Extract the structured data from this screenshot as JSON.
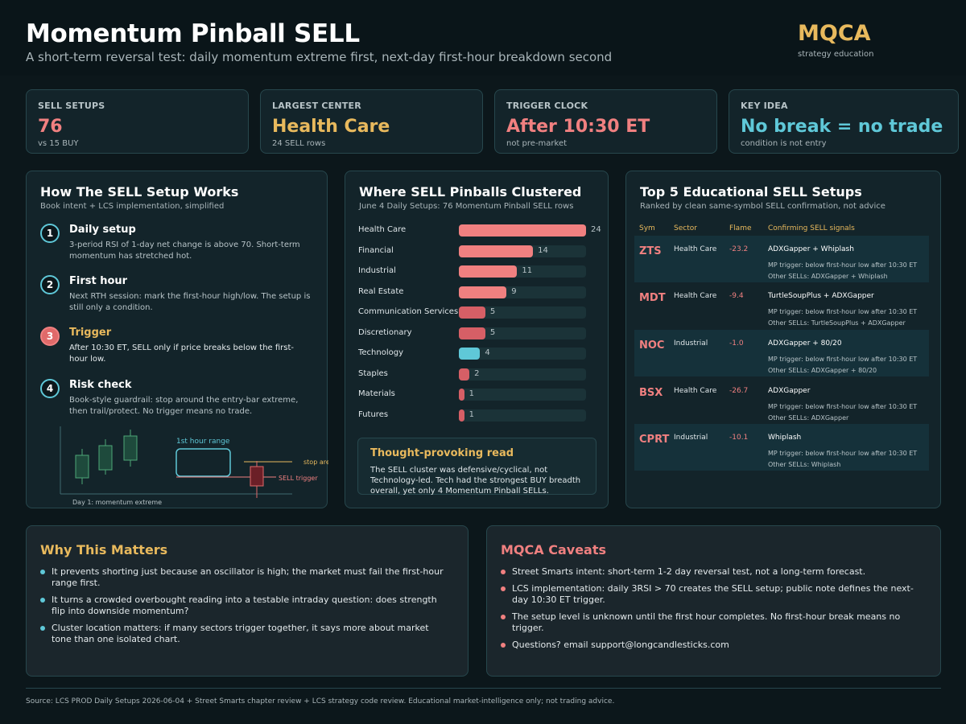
{
  "header": {
    "title": "Momentum Pinball SELL",
    "subtitle": "A short-term reversal test: daily momentum extreme first, next-day first-hour breakdown second",
    "brand": "MQCA",
    "brand_sub": "strategy education"
  },
  "kpis": [
    {
      "label": "SELL SETUPS",
      "value": "76",
      "note": "vs 15 BUY",
      "color": "#f08080"
    },
    {
      "label": "LARGEST CENTER",
      "value": "Health Care",
      "note": "24 SELL rows",
      "color": "#e8b95d"
    },
    {
      "label": "TRIGGER CLOCK",
      "value": "After 10:30 ET",
      "note": "not pre-market",
      "color": "#f08080"
    },
    {
      "label": "KEY IDEA",
      "value": "No break = no trade",
      "note": "condition is not entry",
      "color": "#5fc8d8"
    }
  ],
  "how": {
    "title": "How The SELL Setup Works",
    "subtitle": "Book intent + LCS implementation, simplified",
    "steps": [
      {
        "num": "1",
        "title": "Daily setup",
        "desc": "3-period RSI of 1-day net change is above 70. Short-term momentum has stretched hot."
      },
      {
        "num": "2",
        "title": "First hour",
        "desc": "Next RTH session: mark the first-hour high/low. The setup is still only a condition."
      },
      {
        "num": "3",
        "title": "Trigger",
        "desc": "After 10:30 ET, SELL only if price breaks below the first-hour low."
      },
      {
        "num": "4",
        "title": "Risk check",
        "desc": "Book-style guardrail: stop around the entry-bar extreme, then trail/protect. No trigger means no trade."
      }
    ],
    "diagram": {
      "range_label": "1st hour range",
      "stop_label": "stop area",
      "trigger_label": "SELL trigger",
      "caption": "Day 1: momentum extreme"
    }
  },
  "chart_data": {
    "type": "bar",
    "orientation": "horizontal",
    "title": "Where SELL Pinballs Clustered",
    "subtitle": "June 4 Daily Setups: 76 Momentum Pinball SELL rows",
    "categories": [
      "Health Care",
      "Financial",
      "Industrial",
      "Real Estate",
      "Communication Services",
      "Discretionary",
      "Technology",
      "Staples",
      "Materials",
      "Futures"
    ],
    "values": [
      24,
      14,
      11,
      9,
      5,
      5,
      4,
      2,
      1,
      1
    ],
    "colors": [
      "#f08080",
      "#f08080",
      "#f08080",
      "#f08080",
      "#d65f66",
      "#d65f66",
      "#5fc8d8",
      "#d65f66",
      "#d65f66",
      "#d65f66"
    ],
    "xlim": [
      0,
      24
    ]
  },
  "callout": {
    "title": "Thought-provoking read",
    "body": "The SELL cluster was defensive/cyclical, not Technology-led. Tech had the strongest BUY breadth overall, yet only 4 Momentum Pinball SELLs."
  },
  "top5": {
    "title": "Top 5 Educational SELL Setups",
    "subtitle": "Ranked by clean same-symbol SELL confirmation, not advice",
    "headers": [
      "Sym",
      "Sector",
      "Flame",
      "Confirming SELL signals"
    ],
    "rows": [
      {
        "sym": "ZTS",
        "sector": "Health Care",
        "flame": "-23.2",
        "signals": "ADXGapper + Whiplash",
        "trigger": "MP trigger: below first-hour low after 10:30 ET",
        "other": "Other SELLs: ADXGapper + Whiplash"
      },
      {
        "sym": "MDT",
        "sector": "Health Care",
        "flame": "-9.4",
        "signals": "TurtleSoupPlus + ADXGapper",
        "trigger": "MP trigger: below first-hour low after 10:30 ET",
        "other": "Other SELLs: TurtleSoupPlus + ADXGapper"
      },
      {
        "sym": "NOC",
        "sector": "Industrial",
        "flame": "-1.0",
        "signals": "ADXGapper + 80/20",
        "trigger": "MP trigger: below first-hour low after 10:30 ET",
        "other": "Other SELLs: ADXGapper + 80/20"
      },
      {
        "sym": "BSX",
        "sector": "Health Care",
        "flame": "-26.7",
        "signals": "ADXGapper",
        "trigger": "MP trigger: below first-hour low after 10:30 ET",
        "other": "Other SELLs: ADXGapper"
      },
      {
        "sym": "CPRT",
        "sector": "Industrial",
        "flame": "-10.1",
        "signals": "Whiplash",
        "trigger": "MP trigger: below first-hour low after 10:30 ET",
        "other": "Other SELLs: Whiplash"
      }
    ]
  },
  "why": {
    "title": "Why This Matters",
    "items": [
      "It prevents shorting just because an oscillator is high; the market must fail the first-hour range first.",
      "It turns a crowded overbought reading into a testable intraday question: does strength flip into downside momentum?",
      "Cluster location matters: if many sectors trigger together, it says more about market tone than one isolated chart."
    ]
  },
  "caveats": {
    "title": "MQCA Caveats",
    "items": [
      "Street Smarts intent: short-term 1-2 day reversal test, not a long-term forecast.",
      "LCS implementation: daily 3RSI > 70 creates the SELL setup; public note defines the next-day 10:30 ET trigger.",
      "The setup level is unknown until the first hour completes. No first-hour break means no trigger.",
      "Questions? email support@longcandlesticks.com"
    ]
  },
  "footer": "Source: LCS PROD Daily Setups 2026-06-04 + Street Smarts chapter review + LCS strategy code review. Educational market-intelligence only; not trading advice."
}
